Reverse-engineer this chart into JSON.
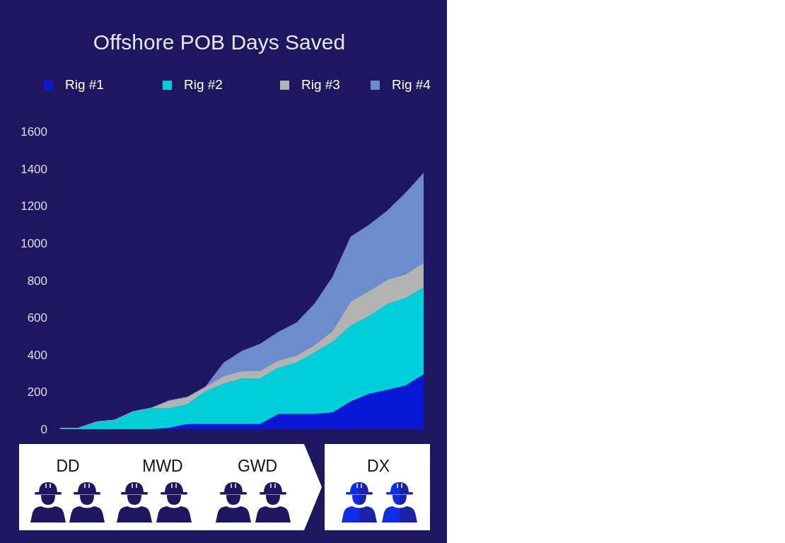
{
  "chart_data": {
    "type": "area",
    "title": "Offshore POB Days Saved",
    "categories": [
      null,
      null,
      null,
      null,
      null,
      null,
      null,
      null,
      null,
      null,
      null,
      null,
      null,
      null,
      null,
      null,
      null,
      null,
      null,
      null,
      null
    ],
    "stacked": true,
    "series": [
      {
        "name": "Rig #1",
        "color": "#0a17d4",
        "values": [
          0,
          0,
          0,
          0,
          0,
          0,
          8,
          28,
          28,
          28,
          28,
          28,
          82,
          82,
          82,
          90,
          150,
          190,
          212,
          235,
          295
        ]
      },
      {
        "name": "Rig #2",
        "color": "#00cfd9",
        "values": [
          5,
          5,
          39,
          49,
          94,
          113,
          105,
          107,
          176,
          217,
          246,
          246,
          249,
          276,
          331,
          380,
          408,
          419,
          461,
          470,
          467
        ]
      },
      {
        "name": "Rig #3",
        "color": "#b3b3b3",
        "values": [
          0,
          0,
          0,
          0,
          0,
          0,
          40,
          37,
          23,
          40,
          38,
          38,
          38,
          36,
          38,
          57,
          127,
          133,
          130,
          126,
          132
        ]
      },
      {
        "name": "Rig #4",
        "color": "#6d8ccc",
        "values": [
          0,
          0,
          0,
          0,
          0,
          0,
          0,
          0,
          0,
          71,
          107,
          145,
          152,
          177,
          222,
          291,
          349,
          355,
          370,
          437,
          482
        ]
      }
    ],
    "ylim": [
      0,
      1600
    ],
    "yticks": [
      0,
      200,
      400,
      600,
      800,
      1000,
      1200,
      1400,
      1600
    ],
    "grid": false,
    "legend": "top",
    "tick_labels": "y",
    "annotations": [
      "DD",
      "MWD",
      "GWD",
      "DX"
    ]
  }
}
